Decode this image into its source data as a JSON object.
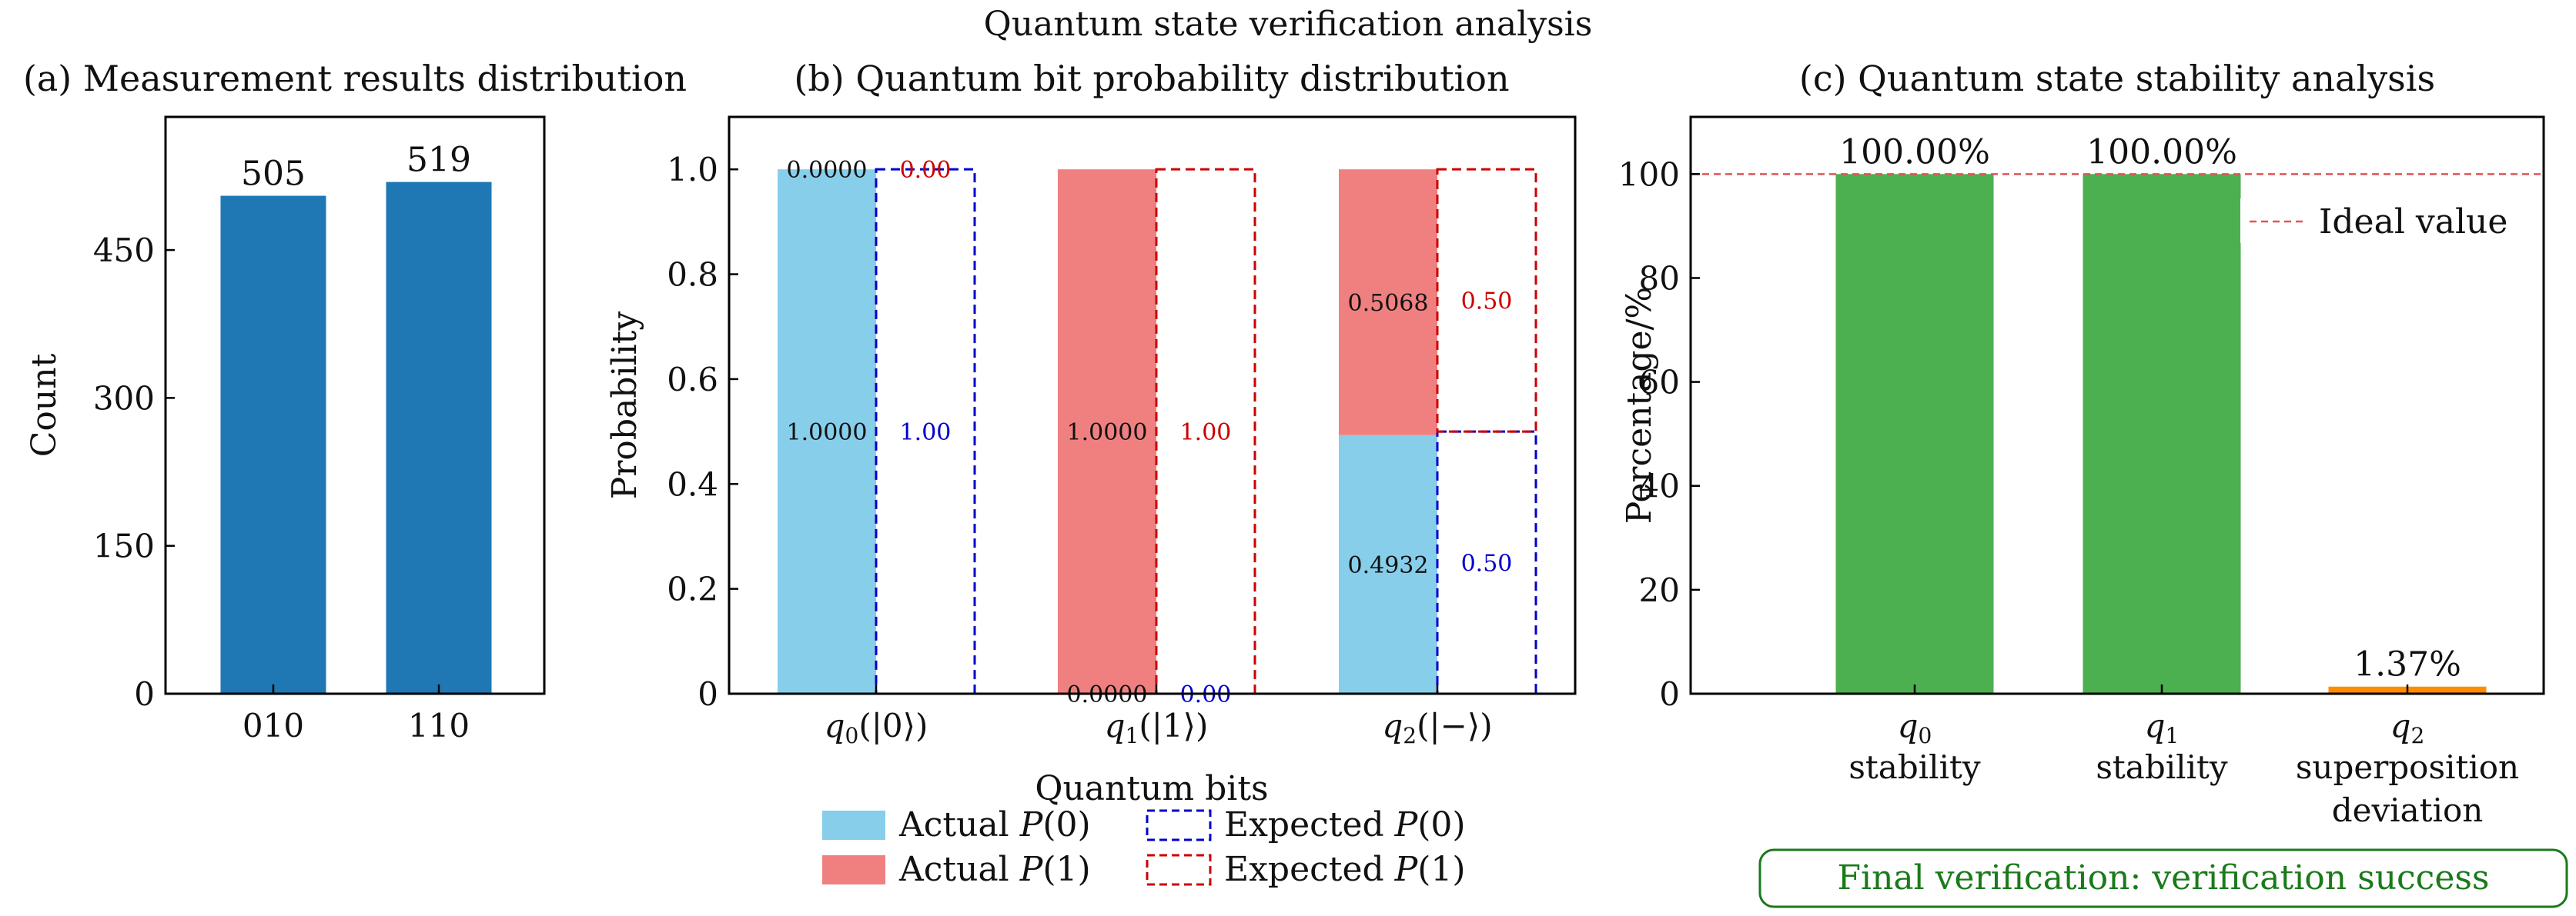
{
  "title": "Quantum state verification analysis",
  "chart_data": [
    {
      "type": "bar",
      "title": "(a) Measurement results distribution",
      "ylabel": "Count",
      "xlabel": "",
      "categories": [
        "010",
        "110"
      ],
      "values": [
        505,
        519
      ],
      "ylim": [
        0,
        585
      ],
      "yticks": [
        0,
        150,
        300,
        450
      ],
      "color": "#1f77b4"
    },
    {
      "type": "bar",
      "title": "(b) Quantum bit probability distribution",
      "ylabel": "Probability",
      "xlabel": "Quantum bits",
      "ylim": [
        0,
        1.1
      ],
      "yticks": [
        "0",
        "0.2",
        "0.4",
        "0.6",
        "0.8",
        "1.0"
      ],
      "categories": [
        {
          "sub": "0",
          "ket": "(|0⟩)"
        },
        {
          "sub": "1",
          "ket": "(|1⟩)"
        },
        {
          "sub": "2",
          "ket": "(|−⟩)"
        }
      ],
      "series": [
        {
          "name": "Actual P(0)",
          "values": [
            1.0,
            0.0,
            0.4932
          ],
          "labels": [
            "1.0000",
            "0.0000",
            "0.4932"
          ]
        },
        {
          "name": "Actual P(1)",
          "values": [
            0.0,
            1.0,
            0.5068
          ],
          "labels": [
            "0.0000",
            "1.0000",
            "0.5068"
          ]
        },
        {
          "name": "Expected P(0)",
          "values": [
            1.0,
            0.0,
            0.5
          ],
          "labels": [
            "1.00",
            "0.00",
            "0.50"
          ]
        },
        {
          "name": "Expected P(1)",
          "values": [
            0.0,
            1.0,
            0.5
          ],
          "labels": [
            "0.00",
            "1.00",
            "0.50"
          ]
        }
      ],
      "legend": [
        "Actual",
        "Expected"
      ],
      "colors": {
        "actual0": "#87ceeb",
        "actual1": "#f08080",
        "expected0": "#0000cc",
        "expected1": "#cc0000"
      }
    },
    {
      "type": "bar",
      "title": "(c) Quantum state stability analysis",
      "ylabel": "Percentage/%",
      "xlabel": "",
      "categories": [
        {
          "sub": "0",
          "lines": [
            "stability"
          ]
        },
        {
          "sub": "1",
          "lines": [
            "stability"
          ]
        },
        {
          "sub": "2",
          "lines": [
            "superposition",
            "deviation"
          ]
        }
      ],
      "values": [
        100.0,
        100.0,
        1.37
      ],
      "labels": [
        "100.00%",
        "100.00%",
        "1.37%"
      ],
      "colors": [
        "#4caf50",
        "#4caf50",
        "#ff8c00"
      ],
      "ylim": [
        0,
        111
      ],
      "yticks": [
        0,
        20,
        40,
        60,
        80,
        100
      ],
      "ideal": {
        "value": 100,
        "label": "Ideal value",
        "color": "#e05555"
      }
    }
  ],
  "verdict": {
    "text": "Final verification: verification success",
    "color": "#1a7a1a"
  }
}
